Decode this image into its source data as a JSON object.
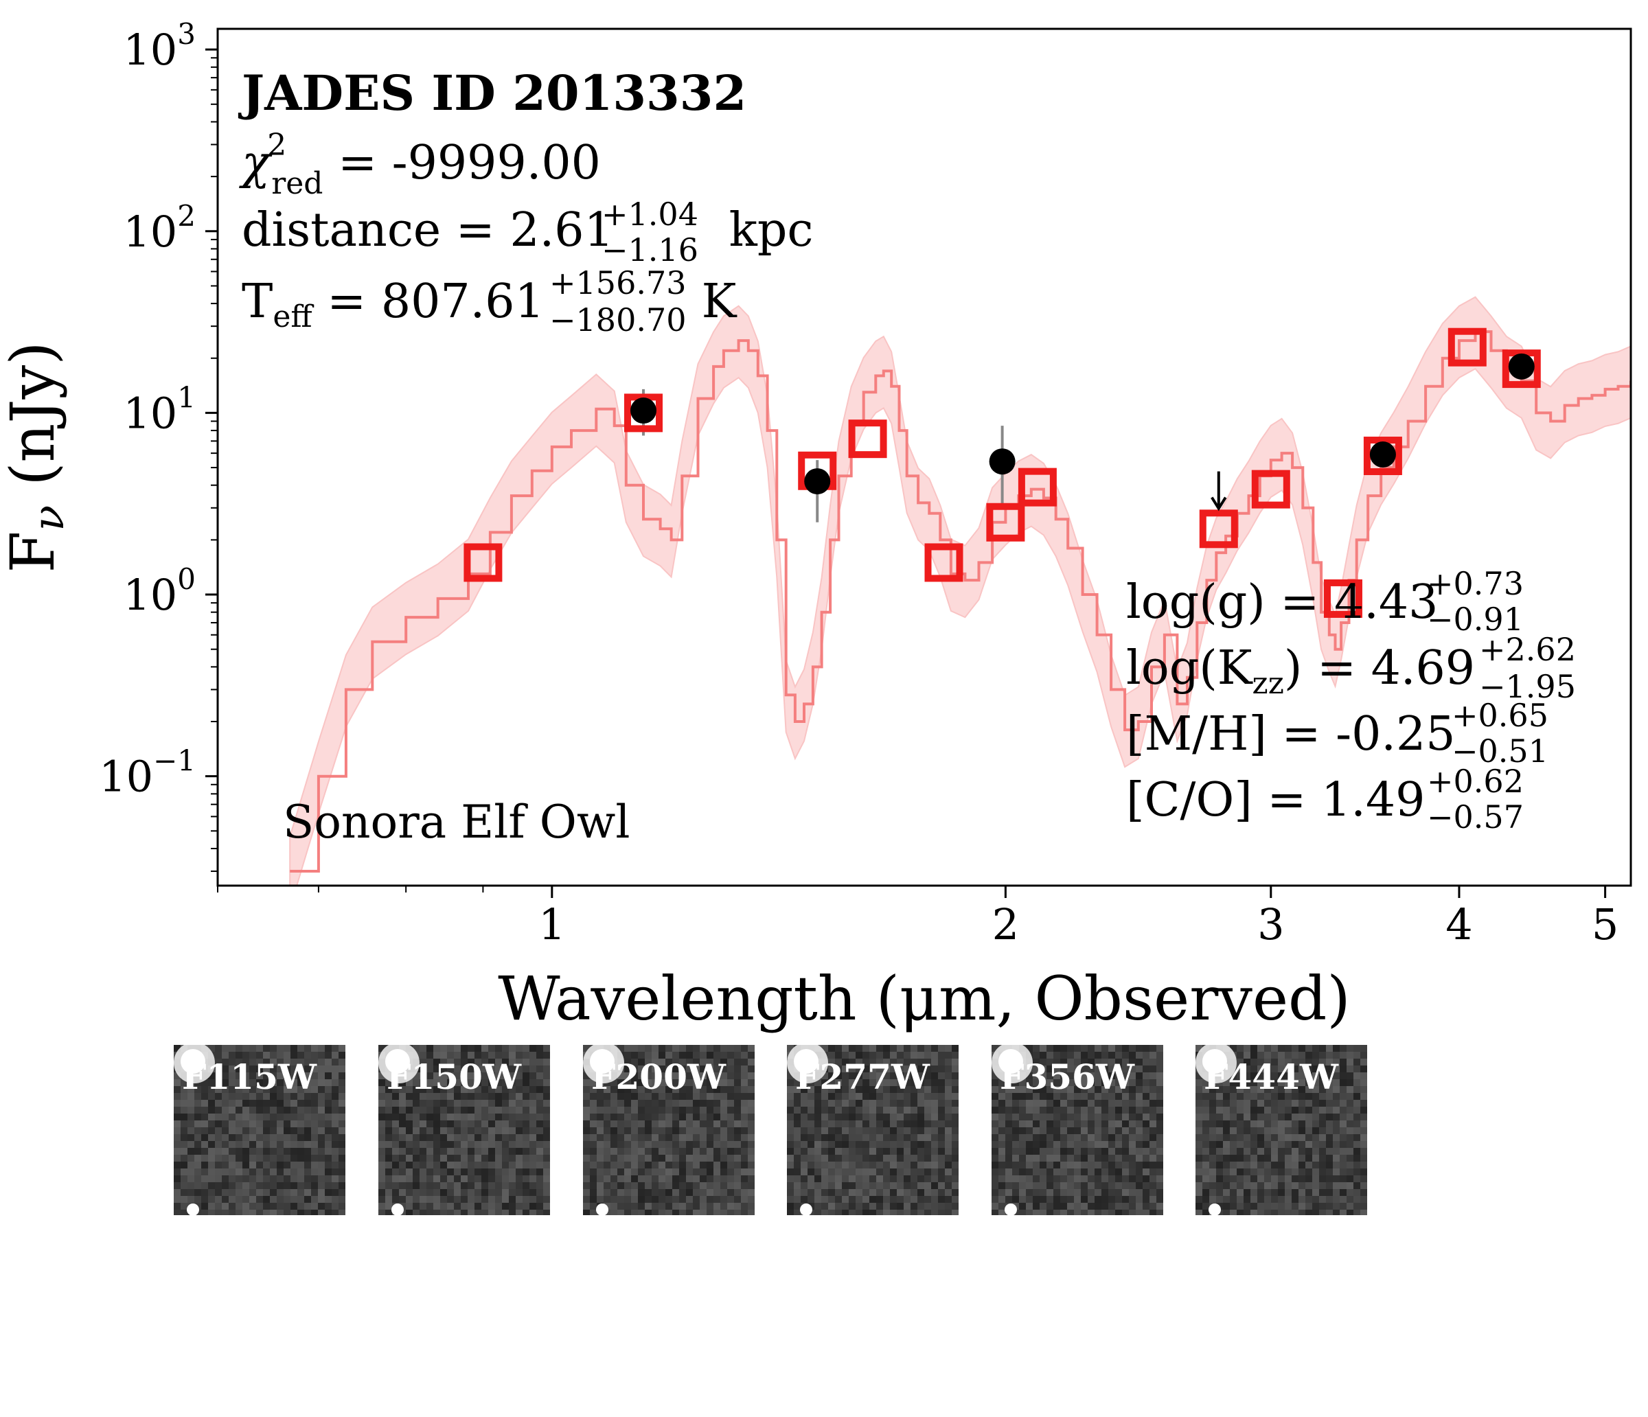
{
  "chart_data": {
    "type": "scatter",
    "xlabel": "Wavelength (μm, Observed)",
    "ylabel": "F_ν (nJy)",
    "xscale": "log",
    "yscale": "log",
    "xlim": [
      0.6,
      5.2
    ],
    "ylim": [
      0.025,
      1300
    ],
    "x_ticks": [
      {
        "value": 1,
        "label": "1"
      },
      {
        "value": 2,
        "label": "2"
      },
      {
        "value": 3,
        "label": "3"
      },
      {
        "value": 4,
        "label": "4"
      },
      {
        "value": 5,
        "label": "5"
      }
    ],
    "y_ticks": [
      {
        "value": 0.1,
        "base": "10",
        "exp": "−1"
      },
      {
        "value": 1,
        "base": "10",
        "exp": "0"
      },
      {
        "value": 10,
        "base": "10",
        "exp": "1"
      },
      {
        "value": 100,
        "base": "10",
        "exp": "2"
      },
      {
        "value": 1000,
        "base": "10",
        "exp": "3"
      }
    ],
    "annotations": {
      "id": "JADES ID 2013332",
      "chi2_label": "χ",
      "chi2_sup": "2",
      "chi2_sub": "red",
      "chi2_value": " = -9999.00",
      "distance_label": "distance = 2.61",
      "distance_up": "+1.04",
      "distance_down": "−1.16",
      "distance_unit": " kpc",
      "teff_label": "T",
      "teff_sub": "eff",
      "teff_value": " = 807.61",
      "teff_up": "+156.73",
      "teff_down": "−180.70",
      "teff_unit": " K",
      "logg_label": "log(g) = 4.43",
      "logg_up": "+0.73",
      "logg_down": "−0.91",
      "logkzz_label": "log(K",
      "logkzz_sub": "zz",
      "logkzz_value": ") = 4.69",
      "logkzz_up": "+2.62",
      "logkzz_down": "−1.95",
      "mh_label": "[M/H] = -0.25",
      "mh_up": "+0.65",
      "mh_down": "−0.51",
      "co_label": "[C/O] = 1.49",
      "co_up": "+0.62",
      "co_down": "−0.57",
      "model_name": "Sonora Elf Owl"
    },
    "model_photometry": [
      {
        "x": 0.9,
        "y": 1.5
      },
      {
        "x": 1.15,
        "y": 10.0
      },
      {
        "x": 1.5,
        "y": 4.8
      },
      {
        "x": 1.62,
        "y": 7.2
      },
      {
        "x": 1.82,
        "y": 1.5
      },
      {
        "x": 2.0,
        "y": 2.5
      },
      {
        "x": 2.1,
        "y": 3.9
      },
      {
        "x": 2.77,
        "y": 2.3
      },
      {
        "x": 3.0,
        "y": 3.8
      },
      {
        "x": 3.35,
        "y": 0.95
      },
      {
        "x": 3.56,
        "y": 5.8
      },
      {
        "x": 4.05,
        "y": 23.0
      },
      {
        "x": 4.4,
        "y": 17.5
      }
    ],
    "observed_photometry": [
      {
        "x": 1.15,
        "y": 10.3,
        "ylo": 7.5,
        "yhi": 13.5
      },
      {
        "x": 1.5,
        "y": 4.2,
        "ylo": 2.5,
        "yhi": 5.5
      },
      {
        "x": 1.99,
        "y": 5.4,
        "ylo": 3.0,
        "yhi": 8.5
      },
      {
        "x": 3.56,
        "y": 5.9,
        "ylo": 5.0,
        "yhi": 6.8
      },
      {
        "x": 4.4,
        "y": 18.0,
        "ylo": 16.0,
        "yhi": 20.0
      }
    ],
    "upper_limits": [
      {
        "x": 2.77,
        "y": 3.8
      }
    ],
    "model_spectrum": [
      [
        0.67,
        0.03
      ],
      [
        0.7,
        0.1
      ],
      [
        0.73,
        0.3
      ],
      [
        0.76,
        0.55
      ],
      [
        0.8,
        0.75
      ],
      [
        0.84,
        0.95
      ],
      [
        0.88,
        1.3
      ],
      [
        0.91,
        2.2
      ],
      [
        0.94,
        3.5
      ],
      [
        0.97,
        4.8
      ],
      [
        1.0,
        6.5
      ],
      [
        1.03,
        8.0
      ],
      [
        1.07,
        10.5
      ],
      [
        1.1,
        8.5
      ],
      [
        1.12,
        4.0
      ],
      [
        1.15,
        2.6
      ],
      [
        1.18,
        2.3
      ],
      [
        1.2,
        2.0
      ],
      [
        1.22,
        4.5
      ],
      [
        1.25,
        12.0
      ],
      [
        1.28,
        18.0
      ],
      [
        1.3,
        22.0
      ],
      [
        1.33,
        25.0
      ],
      [
        1.35,
        22.0
      ],
      [
        1.37,
        16.0
      ],
      [
        1.39,
        8.0
      ],
      [
        1.41,
        2.0
      ],
      [
        1.43,
        0.28
      ],
      [
        1.45,
        0.2
      ],
      [
        1.47,
        0.25
      ],
      [
        1.49,
        0.4
      ],
      [
        1.51,
        0.8
      ],
      [
        1.53,
        2.0
      ],
      [
        1.55,
        4.5
      ],
      [
        1.58,
        9.0
      ],
      [
        1.61,
        13.0
      ],
      [
        1.64,
        16.0
      ],
      [
        1.66,
        17.0
      ],
      [
        1.68,
        14.0
      ],
      [
        1.7,
        8.0
      ],
      [
        1.72,
        4.5
      ],
      [
        1.75,
        3.2
      ],
      [
        1.78,
        2.8
      ],
      [
        1.81,
        2.0
      ],
      [
        1.84,
        1.3
      ],
      [
        1.88,
        1.2
      ],
      [
        1.92,
        1.5
      ],
      [
        1.96,
        2.5
      ],
      [
        2.0,
        3.0
      ],
      [
        2.04,
        3.5
      ],
      [
        2.08,
        3.8
      ],
      [
        2.12,
        3.4
      ],
      [
        2.16,
        2.6
      ],
      [
        2.2,
        1.8
      ],
      [
        2.25,
        1.0
      ],
      [
        2.3,
        0.6
      ],
      [
        2.35,
        0.3
      ],
      [
        2.4,
        0.18
      ],
      [
        2.45,
        0.2
      ],
      [
        2.5,
        0.4
      ],
      [
        2.55,
        0.6
      ],
      [
        2.6,
        0.25
      ],
      [
        2.64,
        0.35
      ],
      [
        2.68,
        0.7
      ],
      [
        2.72,
        1.2
      ],
      [
        2.76,
        1.7
      ],
      [
        2.8,
        2.1
      ],
      [
        2.85,
        2.8
      ],
      [
        2.9,
        3.5
      ],
      [
        2.95,
        4.5
      ],
      [
        3.0,
        5.5
      ],
      [
        3.05,
        6.0
      ],
      [
        3.1,
        5.0
      ],
      [
        3.15,
        3.0
      ],
      [
        3.2,
        1.5
      ],
      [
        3.24,
        0.8
      ],
      [
        3.28,
        0.6
      ],
      [
        3.31,
        0.5
      ],
      [
        3.34,
        0.7
      ],
      [
        3.38,
        1.2
      ],
      [
        3.42,
        2.0
      ],
      [
        3.48,
        3.5
      ],
      [
        3.55,
        5.0
      ],
      [
        3.62,
        6.5
      ],
      [
        3.7,
        9.0
      ],
      [
        3.8,
        14.0
      ],
      [
        3.9,
        20.0
      ],
      [
        4.0,
        25.0
      ],
      [
        4.1,
        28.0
      ],
      [
        4.2,
        22.0
      ],
      [
        4.3,
        17.0
      ],
      [
        4.4,
        15.0
      ],
      [
        4.5,
        10.0
      ],
      [
        4.6,
        9.0
      ],
      [
        4.7,
        11.0
      ],
      [
        4.8,
        12.0
      ],
      [
        4.9,
        12.5
      ],
      [
        5.0,
        13.5
      ],
      [
        5.1,
        14.0
      ],
      [
        5.2,
        15.0
      ]
    ],
    "colors": {
      "model_box": "#ee1c1c",
      "spectrum_line": "#f47f7f",
      "spectrum_band": "#fcdada",
      "observed": "#000000",
      "error_bar": "#888888"
    }
  },
  "cutouts": [
    {
      "label": "F115W"
    },
    {
      "label": "F150W"
    },
    {
      "label": "F200W"
    },
    {
      "label": "F277W"
    },
    {
      "label": "F356W"
    },
    {
      "label": "F444W"
    }
  ]
}
